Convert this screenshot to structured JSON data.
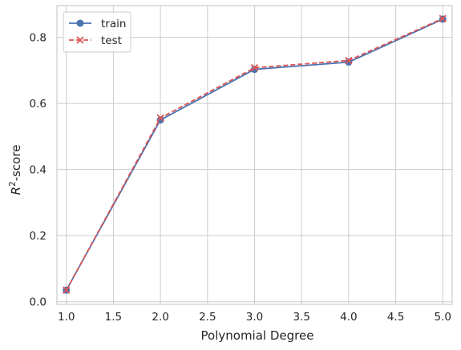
{
  "chart_data": {
    "type": "line",
    "title": "",
    "xlabel": "Polynomial Degree",
    "ylabel_base": "R",
    "ylabel_sup": "2",
    "ylabel_rest": "-score",
    "xlim": [
      0.9,
      5.1
    ],
    "ylim": [
      -0.008,
      0.896
    ],
    "xticks": [
      1.0,
      1.5,
      2.0,
      2.5,
      3.0,
      3.5,
      4.0,
      4.5,
      5.0
    ],
    "xtick_labels": [
      "1.0",
      "1.5",
      "2.0",
      "2.5",
      "3.0",
      "3.5",
      "4.0",
      "4.5",
      "5.0"
    ],
    "yticks": [
      0.0,
      0.2,
      0.4,
      0.6,
      0.8
    ],
    "ytick_labels": [
      "0.0",
      "0.2",
      "0.4",
      "0.6",
      "0.8"
    ],
    "grid": true,
    "legend_position": "top-left",
    "x": [
      1,
      2,
      3,
      4,
      5
    ],
    "series": [
      {
        "name": "train",
        "values": [
          0.035,
          0.55,
          0.703,
          0.725,
          0.855
        ],
        "color": "#4c72b0",
        "style": "solid",
        "marker": "circle"
      },
      {
        "name": "test",
        "values": [
          0.035,
          0.556,
          0.708,
          0.73,
          0.857
        ],
        "color": "#dd5555",
        "style": "dashed",
        "marker": "x"
      }
    ]
  }
}
